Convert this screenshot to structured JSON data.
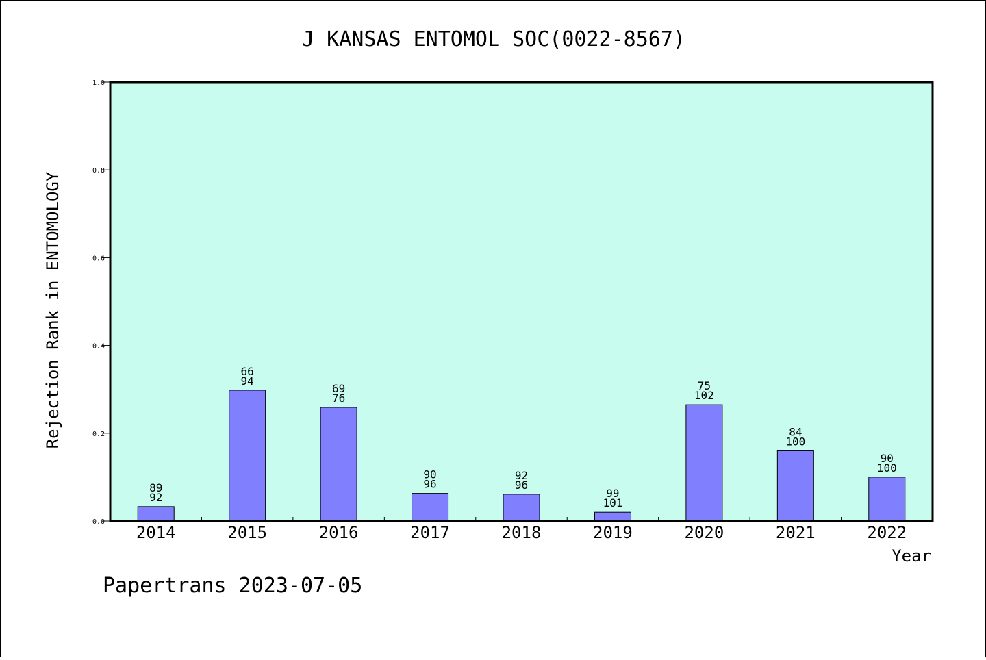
{
  "chart_data": {
    "type": "bar",
    "title": "J KANSAS ENTOMOL SOC(0022-8567)",
    "xlabel": "Year",
    "ylabel": "Rejection Rank in ENTOMOLOGY",
    "ylim": [
      0,
      1
    ],
    "yticks": [
      "0.0",
      "0.2",
      "0.4",
      "0.6",
      "0.8",
      "1.0"
    ],
    "categories": [
      "2014",
      "2015",
      "2016",
      "2017",
      "2018",
      "2019",
      "2020",
      "2021",
      "2022"
    ],
    "values": [
      0.033,
      0.298,
      0.259,
      0.063,
      0.061,
      0.02,
      0.265,
      0.16,
      0.1
    ],
    "labels_top": [
      "89",
      "66",
      "69",
      "90",
      "92",
      "99",
      "75",
      "84",
      "90"
    ],
    "labels_bottom": [
      "92",
      "94",
      "76",
      "96",
      "96",
      "101",
      "102",
      "100",
      "100"
    ],
    "grid": false,
    "colors": {
      "plot_bg": "#c8fcee",
      "bar": "#8080ff",
      "bar_edge": "#000000"
    }
  },
  "footer": "Papertrans 2023-07-05"
}
